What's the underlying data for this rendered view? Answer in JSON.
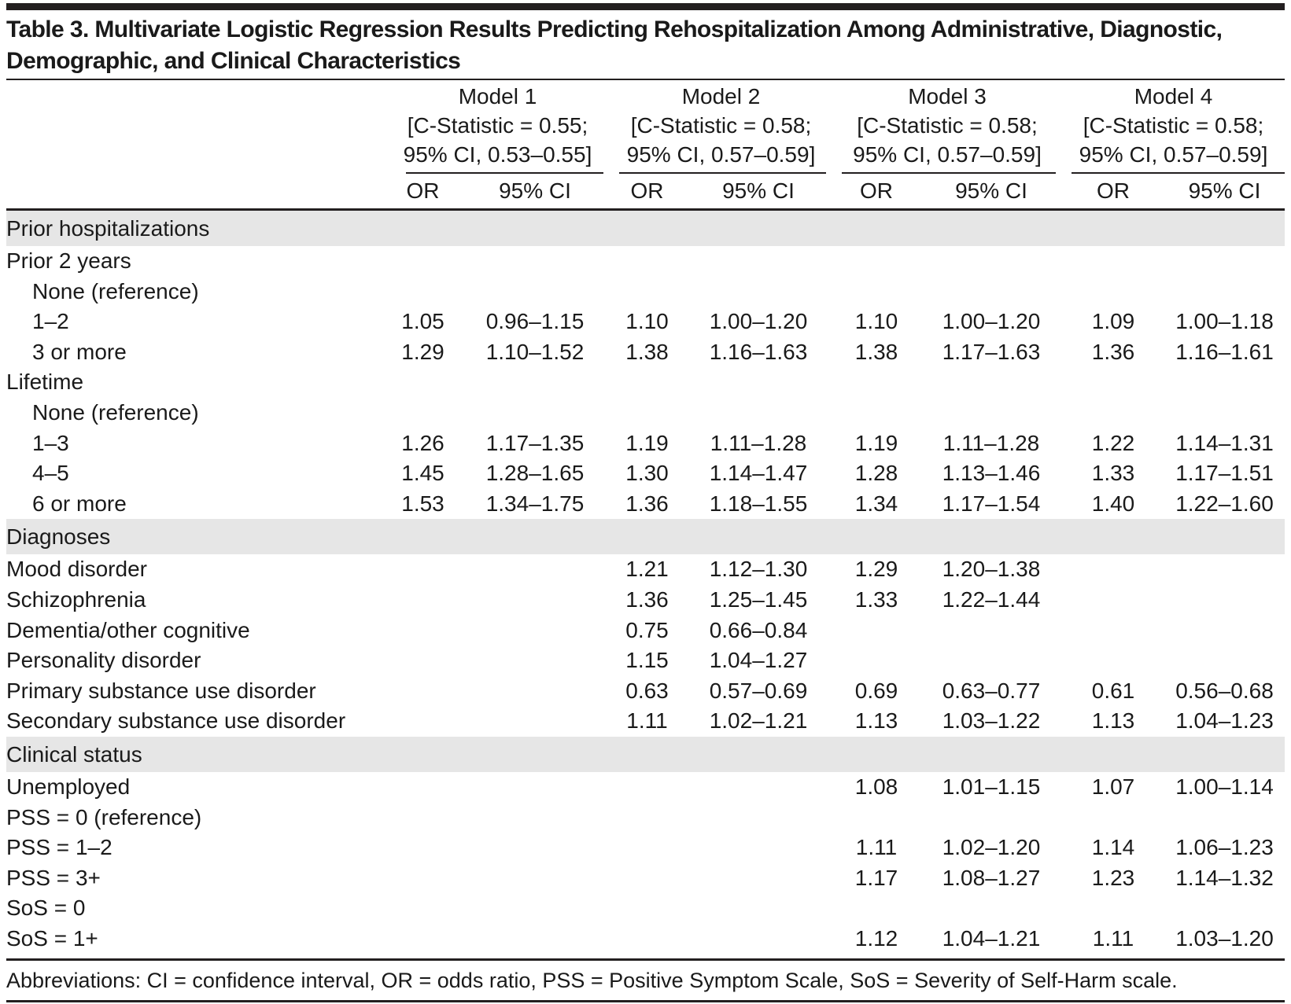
{
  "title": "Table 3. Multivariate Logistic Regression Results Predicting Rehospitalization Among Administrative, Diagnostic, Demographic, and Clinical Characteristics",
  "models": [
    {
      "name": "Model 1",
      "cstat": "[C-Statistic = 0.55;",
      "ci": "95% CI, 0.53–0.55]",
      "or_label": "OR",
      "ci_label": "95% CI"
    },
    {
      "name": "Model 2",
      "cstat": "[C-Statistic = 0.58;",
      "ci": "95% CI, 0.57–0.59]",
      "or_label": "OR",
      "ci_label": "95% CI"
    },
    {
      "name": "Model 3",
      "cstat": "[C-Statistic = 0.58;",
      "ci": "95% CI, 0.57–0.59]",
      "or_label": "OR",
      "ci_label": "95% CI"
    },
    {
      "name": "Model 4",
      "cstat": "[C-Statistic = 0.58;",
      "ci": "95% CI, 0.57–0.59]",
      "or_label": "OR",
      "ci_label": "95% CI"
    }
  ],
  "rows": [
    {
      "type": "section",
      "label": "Prior hospitalizations"
    },
    {
      "type": "row",
      "indent": false,
      "label": "Prior 2 years",
      "values": [
        "",
        "",
        "",
        "",
        "",
        "",
        "",
        ""
      ]
    },
    {
      "type": "row",
      "indent": true,
      "label": "None (reference)",
      "values": [
        "",
        "",
        "",
        "",
        "",
        "",
        "",
        ""
      ]
    },
    {
      "type": "row",
      "indent": true,
      "label": "1–2",
      "values": [
        "1.05",
        "0.96–1.15",
        "1.10",
        "1.00–1.20",
        "1.10",
        "1.00–1.20",
        "1.09",
        "1.00–1.18"
      ]
    },
    {
      "type": "row",
      "indent": true,
      "label": "3 or more",
      "values": [
        "1.29",
        "1.10–1.52",
        "1.38",
        "1.16–1.63",
        "1.38",
        "1.17–1.63",
        "1.36",
        "1.16–1.61"
      ]
    },
    {
      "type": "row",
      "indent": false,
      "label": "Lifetime",
      "values": [
        "",
        "",
        "",
        "",
        "",
        "",
        "",
        ""
      ]
    },
    {
      "type": "row",
      "indent": true,
      "label": "None (reference)",
      "values": [
        "",
        "",
        "",
        "",
        "",
        "",
        "",
        ""
      ]
    },
    {
      "type": "row",
      "indent": true,
      "label": "1–3",
      "values": [
        "1.26",
        "1.17–1.35",
        "1.19",
        "1.11–1.28",
        "1.19",
        "1.11–1.28",
        "1.22",
        "1.14–1.31"
      ]
    },
    {
      "type": "row",
      "indent": true,
      "label": "4–5",
      "values": [
        "1.45",
        "1.28–1.65",
        "1.30",
        "1.14–1.47",
        "1.28",
        "1.13–1.46",
        "1.33",
        "1.17–1.51"
      ]
    },
    {
      "type": "row",
      "indent": true,
      "label": "6 or more",
      "values": [
        "1.53",
        "1.34–1.75",
        "1.36",
        "1.18–1.55",
        "1.34",
        "1.17–1.54",
        "1.40",
        "1.22–1.60"
      ]
    },
    {
      "type": "section",
      "label": "Diagnoses"
    },
    {
      "type": "row",
      "indent": false,
      "label": "Mood disorder",
      "values": [
        "",
        "",
        "1.21",
        "1.12–1.30",
        "1.29",
        "1.20–1.38",
        "",
        ""
      ]
    },
    {
      "type": "row",
      "indent": false,
      "label": "Schizophrenia",
      "values": [
        "",
        "",
        "1.36",
        "1.25–1.45",
        "1.33",
        "1.22–1.44",
        "",
        ""
      ]
    },
    {
      "type": "row",
      "indent": false,
      "label": "Dementia/other cognitive",
      "values": [
        "",
        "",
        "0.75",
        "0.66–0.84",
        "",
        "",
        "",
        ""
      ]
    },
    {
      "type": "row",
      "indent": false,
      "label": "Personality disorder",
      "values": [
        "",
        "",
        "1.15",
        "1.04–1.27",
        "",
        "",
        "",
        ""
      ]
    },
    {
      "type": "row",
      "indent": false,
      "label": "Primary substance use disorder",
      "values": [
        "",
        "",
        "0.63",
        "0.57–0.69",
        "0.69",
        "0.63–0.77",
        "0.61",
        "0.56–0.68"
      ]
    },
    {
      "type": "row",
      "indent": false,
      "label": "Secondary substance use disorder",
      "values": [
        "",
        "",
        "1.11",
        "1.02–1.21",
        "1.13",
        "1.03–1.22",
        "1.13",
        "1.04–1.23"
      ]
    },
    {
      "type": "section",
      "label": "Clinical status"
    },
    {
      "type": "row",
      "indent": false,
      "label": "Unemployed",
      "values": [
        "",
        "",
        "",
        "",
        "1.08",
        "1.01–1.15",
        "1.07",
        "1.00–1.14"
      ]
    },
    {
      "type": "row",
      "indent": false,
      "label": "PSS = 0 (reference)",
      "values": [
        "",
        "",
        "",
        "",
        "",
        "",
        "",
        ""
      ]
    },
    {
      "type": "row",
      "indent": false,
      "label": "PSS = 1–2",
      "values": [
        "",
        "",
        "",
        "",
        "1.11",
        "1.02–1.20",
        "1.14",
        "1.06–1.23"
      ]
    },
    {
      "type": "row",
      "indent": false,
      "label": "PSS = 3+",
      "values": [
        "",
        "",
        "",
        "",
        "1.17",
        "1.08–1.27",
        "1.23",
        "1.14–1.32"
      ]
    },
    {
      "type": "row",
      "indent": false,
      "label": "SoS = 0",
      "values": [
        "",
        "",
        "",
        "",
        "",
        "",
        "",
        ""
      ]
    },
    {
      "type": "row",
      "indent": false,
      "label": "SoS = 1+",
      "values": [
        "",
        "",
        "",
        "",
        "1.12",
        "1.04–1.21",
        "1.11",
        "1.03–1.20"
      ]
    }
  ],
  "footnote": "Abbreviations: CI = confidence interval, OR = odds ratio, PSS = Positive Symptom Scale, SoS = Severity of Self-Harm scale.",
  "colors": {
    "rule": "#231f20",
    "section_bg": "#e6e6e6",
    "text": "#1a1a1a"
  }
}
